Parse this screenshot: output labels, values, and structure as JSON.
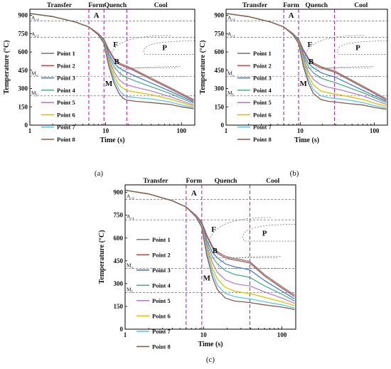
{
  "figure": {
    "panel_labels": [
      "(a)",
      "(b)",
      "(c)"
    ]
  },
  "chart_data": [
    {
      "panel": "(a)",
      "type": "line",
      "xlabel": "Time (s)",
      "ylabel": "Temperature (°C)",
      "xscale": "log",
      "xlim": [
        1,
        150
      ],
      "ylim": [
        0,
        950
      ],
      "xticks": [
        1,
        10,
        100
      ],
      "yticks": [
        0,
        150,
        300,
        450,
        600,
        750,
        900
      ],
      "grid": false,
      "legend_position": "left",
      "stage_labels": [
        "Transfer",
        "Form",
        "Quench",
        "Cool"
      ],
      "stage_boundaries": [
        6,
        9.5,
        19
      ],
      "hlines": [
        {
          "label_main": "A",
          "label_sub": "c3",
          "y": 855
        },
        {
          "label_main": "A",
          "label_sub": "c1",
          "y": 720
        },
        {
          "label_main": "M",
          "label_sub": "s",
          "y": 400
        },
        {
          "label_main": "M",
          "label_sub": "f",
          "y": 240
        }
      ],
      "annotations": [
        "A",
        "F",
        "B",
        "P",
        "M"
      ],
      "x": [
        1,
        2,
        4,
        6,
        8,
        9.5,
        11,
        13,
        15,
        17,
        19,
        25,
        40,
        70,
        100,
        145
      ],
      "series": [
        {
          "name": "Point 1",
          "color": "#7f7f7f",
          "values": [
            915,
            890,
            845,
            805,
            750,
            705,
            620,
            545,
            510,
            495,
            485,
            450,
            385,
            310,
            260,
            210
          ]
        },
        {
          "name": "Point 2",
          "color": "#c0504d",
          "values": [
            915,
            890,
            845,
            805,
            750,
            700,
            610,
            535,
            500,
            485,
            475,
            440,
            375,
            300,
            250,
            200
          ]
        },
        {
          "name": "Point 3",
          "color": "#4a7bd0",
          "values": [
            915,
            890,
            845,
            805,
            745,
            695,
            585,
            505,
            470,
            450,
            435,
            400,
            345,
            280,
            235,
            190
          ]
        },
        {
          "name": "Point 4",
          "color": "#4bb08a",
          "values": [
            915,
            890,
            845,
            805,
            745,
            690,
            565,
            475,
            430,
            405,
            390,
            360,
            315,
            260,
            220,
            180
          ]
        },
        {
          "name": "Point 5",
          "color": "#b57fd6",
          "values": [
            915,
            890,
            845,
            805,
            745,
            685,
            545,
            435,
            375,
            345,
            330,
            310,
            280,
            235,
            200,
            165
          ]
        },
        {
          "name": "Point 6",
          "color": "#e0c000",
          "values": [
            915,
            890,
            845,
            805,
            740,
            680,
            525,
            400,
            330,
            300,
            285,
            270,
            250,
            215,
            185,
            155
          ]
        },
        {
          "name": "Point 7",
          "color": "#59c8ea",
          "values": [
            915,
            890,
            845,
            805,
            740,
            675,
            505,
            370,
            290,
            250,
            235,
            225,
            215,
            190,
            165,
            145
          ]
        },
        {
          "name": "Point 8",
          "color": "#8b5a4b",
          "values": [
            915,
            890,
            845,
            805,
            740,
            670,
            485,
            340,
            260,
            220,
            205,
            195,
            185,
            170,
            150,
            135
          ]
        }
      ]
    },
    {
      "panel": "(b)",
      "type": "line",
      "xlabel": "Time (s)",
      "ylabel": "Temperature (°C)",
      "xscale": "log",
      "xlim": [
        1,
        150
      ],
      "ylim": [
        0,
        950
      ],
      "xticks": [
        1,
        10,
        100
      ],
      "yticks": [
        0,
        150,
        300,
        450,
        600,
        750,
        900
      ],
      "grid": false,
      "legend_position": "left",
      "stage_labels": [
        "Transfer",
        "Form",
        "Quench",
        "Cool"
      ],
      "stage_boundaries": [
        6,
        9.5,
        29
      ],
      "hlines": [
        {
          "label_main": "A",
          "label_sub": "c3",
          "y": 855
        },
        {
          "label_main": "A",
          "label_sub": "c1",
          "y": 720
        },
        {
          "label_main": "M",
          "label_sub": "s",
          "y": 400
        },
        {
          "label_main": "M",
          "label_sub": "f",
          "y": 240
        }
      ],
      "annotations": [
        "A",
        "F",
        "B",
        "P",
        "M"
      ],
      "x": [
        1,
        2,
        4,
        6,
        8,
        9.5,
        11,
        13,
        15,
        19,
        24,
        29,
        40,
        70,
        100,
        145
      ],
      "series": [
        {
          "name": "Point 1",
          "color": "#7f7f7f",
          "values": [
            915,
            890,
            845,
            805,
            750,
            705,
            620,
            545,
            510,
            480,
            460,
            445,
            400,
            320,
            270,
            215
          ]
        },
        {
          "name": "Point 2",
          "color": "#c0504d",
          "values": [
            915,
            890,
            845,
            805,
            750,
            700,
            610,
            535,
            500,
            470,
            450,
            435,
            390,
            310,
            260,
            205
          ]
        },
        {
          "name": "Point 3",
          "color": "#4a7bd0",
          "values": [
            915,
            890,
            845,
            805,
            745,
            695,
            585,
            505,
            470,
            430,
            410,
            395,
            355,
            285,
            240,
            195
          ]
        },
        {
          "name": "Point 4",
          "color": "#4bb08a",
          "values": [
            915,
            890,
            845,
            805,
            745,
            690,
            565,
            475,
            430,
            385,
            365,
            350,
            320,
            265,
            225,
            185
          ]
        },
        {
          "name": "Point 5",
          "color": "#b57fd6",
          "values": [
            915,
            890,
            845,
            805,
            745,
            685,
            545,
            435,
            375,
            330,
            310,
            300,
            280,
            240,
            205,
            170
          ]
        },
        {
          "name": "Point 6",
          "color": "#e0c000",
          "values": [
            915,
            890,
            845,
            805,
            740,
            680,
            525,
            400,
            330,
            280,
            265,
            255,
            240,
            210,
            180,
            155
          ]
        },
        {
          "name": "Point 7",
          "color": "#59c8ea",
          "values": [
            915,
            890,
            845,
            805,
            740,
            675,
            505,
            370,
            290,
            240,
            225,
            220,
            210,
            185,
            160,
            140
          ]
        },
        {
          "name": "Point 8",
          "color": "#8b5a4b",
          "values": [
            915,
            890,
            845,
            805,
            740,
            670,
            485,
            340,
            260,
            210,
            195,
            190,
            180,
            165,
            145,
            130
          ]
        }
      ]
    },
    {
      "panel": "(c)",
      "type": "line",
      "xlabel": "Time (s)",
      "ylabel": "Temperature (°C)",
      "xscale": "log",
      "xlim": [
        1,
        150
      ],
      "ylim": [
        0,
        950
      ],
      "xticks": [
        1,
        10,
        100
      ],
      "yticks": [
        0,
        150,
        300,
        450,
        600,
        750,
        900
      ],
      "grid": false,
      "legend_position": "left",
      "stage_labels": [
        "Transfer",
        "Form",
        "Quench",
        "Cool"
      ],
      "stage_boundaries": [
        6,
        9.5,
        39
      ],
      "hlines": [
        {
          "label_main": "A",
          "label_sub": "c3",
          "y": 855
        },
        {
          "label_main": "A",
          "label_sub": "c1",
          "y": 720
        },
        {
          "label_main": "M",
          "label_sub": "s",
          "y": 400
        },
        {
          "label_main": "M",
          "label_sub": "f",
          "y": 240
        }
      ],
      "annotations": [
        "A",
        "F",
        "B",
        "P",
        "M"
      ],
      "x": [
        1,
        2,
        4,
        6,
        8,
        9.5,
        11,
        13,
        15,
        19,
        25,
        32,
        39,
        60,
        100,
        145
      ],
      "series": [
        {
          "name": "Point 1",
          "color": "#7f7f7f",
          "values": [
            915,
            890,
            845,
            805,
            750,
            705,
            620,
            545,
            510,
            480,
            465,
            455,
            445,
            360,
            280,
            225
          ]
        },
        {
          "name": "Point 2",
          "color": "#c0504d",
          "values": [
            915,
            890,
            845,
            805,
            750,
            700,
            610,
            535,
            500,
            470,
            455,
            445,
            435,
            350,
            270,
            215
          ]
        },
        {
          "name": "Point 3",
          "color": "#4a7bd0",
          "values": [
            915,
            890,
            845,
            805,
            745,
            695,
            585,
            505,
            470,
            430,
            410,
            400,
            390,
            320,
            250,
            200
          ]
        },
        {
          "name": "Point 4",
          "color": "#4bb08a",
          "values": [
            915,
            890,
            845,
            805,
            745,
            690,
            565,
            475,
            430,
            385,
            360,
            350,
            340,
            285,
            230,
            185
          ]
        },
        {
          "name": "Point 5",
          "color": "#b57fd6",
          "values": [
            915,
            890,
            845,
            805,
            745,
            685,
            545,
            435,
            375,
            325,
            300,
            290,
            285,
            245,
            205,
            170
          ]
        },
        {
          "name": "Point 6",
          "color": "#e0c000",
          "values": [
            915,
            890,
            845,
            805,
            740,
            680,
            525,
            400,
            330,
            275,
            250,
            240,
            235,
            210,
            180,
            155
          ]
        },
        {
          "name": "Point 7",
          "color": "#59c8ea",
          "values": [
            915,
            890,
            845,
            805,
            740,
            675,
            505,
            370,
            290,
            235,
            215,
            205,
            200,
            180,
            160,
            140
          ]
        },
        {
          "name": "Point 8",
          "color": "#8b5a4b",
          "values": [
            915,
            890,
            845,
            805,
            740,
            670,
            485,
            340,
            260,
            205,
            185,
            180,
            175,
            160,
            145,
            130
          ]
        }
      ]
    }
  ]
}
